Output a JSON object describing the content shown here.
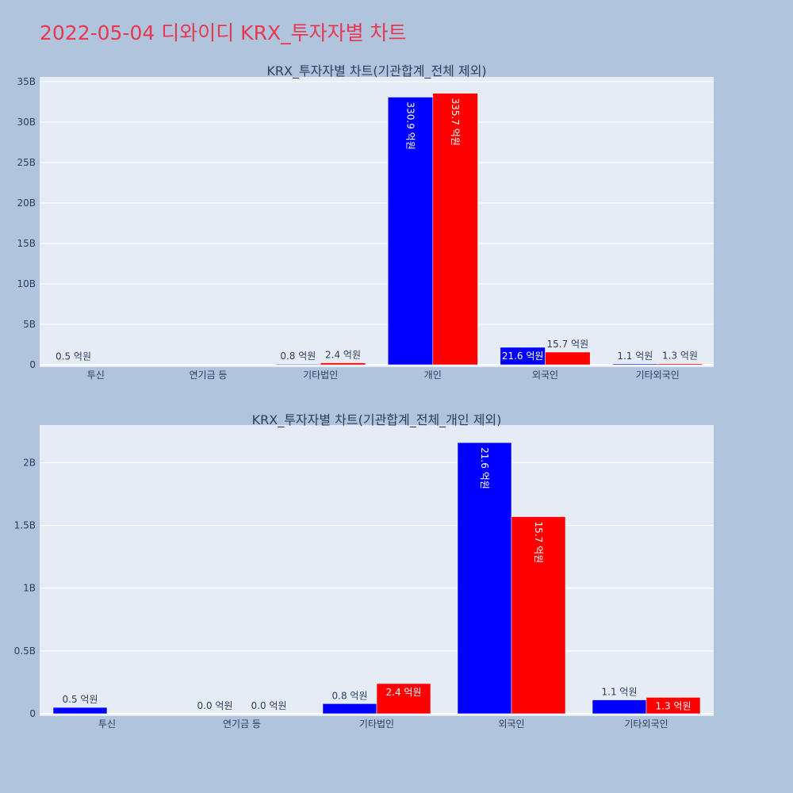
{
  "page": {
    "title": "2022-05-04 디와이디 KRX_투자자별 차트"
  },
  "colors": {
    "background": "#b0c4de",
    "plot_bg": "#e5ecf6",
    "title": "#e8384f",
    "series_buy": "#0000ff",
    "series_sell": "#ff0000",
    "text": "#2a3f5f"
  },
  "chart_data": [
    {
      "type": "bar",
      "title": "KRX_투자자별 차트(기관합계_전체 제외)",
      "categories": [
        "투신",
        "연기금 등",
        "기타법인",
        "개인",
        "외국인",
        "기타외국인"
      ],
      "ylim": [
        0,
        35000000000
      ],
      "yticks": [
        {
          "value": 0,
          "label": "0"
        },
        {
          "value": 5000000000,
          "label": "5B"
        },
        {
          "value": 10000000000,
          "label": "10B"
        },
        {
          "value": 15000000000,
          "label": "15B"
        },
        {
          "value": 20000000000,
          "label": "20B"
        },
        {
          "value": 25000000000,
          "label": "25B"
        },
        {
          "value": 30000000000,
          "label": "30B"
        },
        {
          "value": 35000000000,
          "label": "35B"
        }
      ],
      "grid": true,
      "series": [
        {
          "color": "#0000ff",
          "values": [
            50000000,
            null,
            80000000,
            33090000000,
            2160000000,
            110000000
          ],
          "labels": [
            "0.5 억원",
            "",
            "0.8 억원",
            "330.9 억원",
            "21.6 억원",
            "1.1 억원"
          ]
        },
        {
          "color": "#ff0000",
          "values": [
            null,
            null,
            240000000,
            33570000000,
            1570000000,
            130000000
          ],
          "labels": [
            "",
            "",
            "2.4 억원",
            "335.7 억원",
            "15.7 억원",
            "1.3 억원"
          ]
        }
      ]
    },
    {
      "type": "bar",
      "title": "KRX_투자자별 차트(기관합계_전체_개인 제외)",
      "categories": [
        "투신",
        "연기금 등",
        "기타법인",
        "외국인",
        "기타외국인"
      ],
      "ylim": [
        0,
        2300000000
      ],
      "yticks": [
        {
          "value": 0,
          "label": "0"
        },
        {
          "value": 500000000,
          "label": "0.5B"
        },
        {
          "value": 1000000000,
          "label": "1B"
        },
        {
          "value": 1500000000,
          "label": "1.5B"
        },
        {
          "value": 2000000000,
          "label": "2B"
        }
      ],
      "grid": true,
      "series": [
        {
          "color": "#0000ff",
          "values": [
            50000000,
            0,
            80000000,
            2160000000,
            110000000
          ],
          "labels": [
            "0.5 억원",
            "0.0 억원",
            "0.8 억원",
            "21.6 억원",
            "1.1 억원"
          ]
        },
        {
          "color": "#ff0000",
          "values": [
            null,
            0,
            240000000,
            1570000000,
            130000000
          ],
          "labels": [
            "",
            "0.0 억원",
            "2.4 억원",
            "15.7 억원",
            "1.3 억원"
          ]
        }
      ]
    }
  ]
}
